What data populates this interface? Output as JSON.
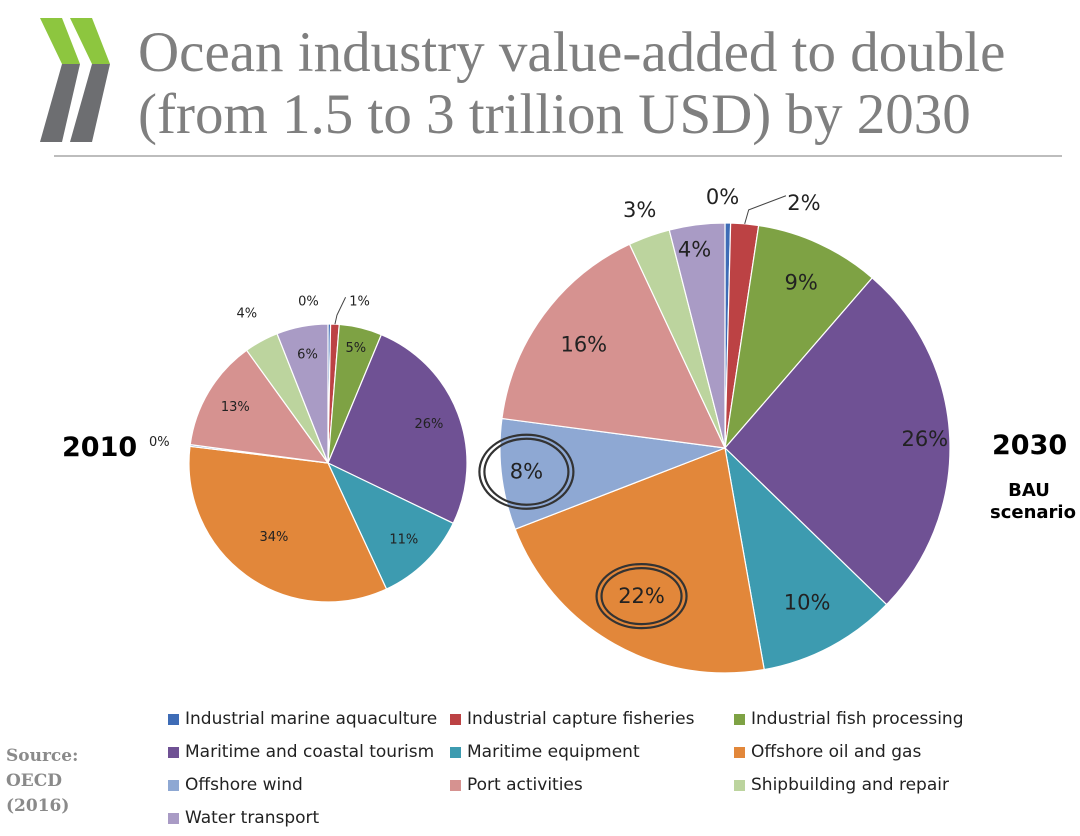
{
  "title": {
    "line1": "Ocean industry value-added to double",
    "line2": "(from 1.5 to 3 trillion USD) by 2030"
  },
  "source": {
    "line1": "Source:",
    "line2": "OECD",
    "line3": "(2016)"
  },
  "colors": {
    "chevron_light": "#8dc63f",
    "chevron_dark": "#6d6e71",
    "title_text": "#7f7f7f",
    "highlight_ring": "#333333"
  },
  "chart_data": [
    {
      "type": "pie",
      "year_label": "2010",
      "subtitle": "",
      "categories": [
        "Industrial marine aquaculture",
        "Industrial capture fisheries",
        "Industrial fish processing",
        "Maritime and coastal tourism",
        "Maritime equipment",
        "Offshore oil and gas",
        "Offshore wind",
        "Port activities",
        "Shipbuilding and repair",
        "Water transport"
      ],
      "values": [
        0.3,
        1,
        5,
        26,
        11,
        34,
        0.2,
        13,
        4,
        6
      ],
      "labels": [
        "0%",
        "1%",
        "5%",
        "26%",
        "11%",
        "34%",
        "0%",
        "13%",
        "4%",
        "6%"
      ],
      "colors": [
        "#3e6cb6",
        "#bc4244",
        "#7ea244",
        "#6f5194",
        "#3d9bb0",
        "#e2873a",
        "#8ea8d3",
        "#d69290",
        "#bcd49e",
        "#a99bc5"
      ]
    },
    {
      "type": "pie",
      "year_label": "2030",
      "subtitle": "BAU\nscenario",
      "categories": [
        "Industrial marine aquaculture",
        "Industrial capture fisheries",
        "Industrial fish processing",
        "Maritime and coastal tourism",
        "Maritime equipment",
        "Offshore oil and gas",
        "Offshore wind",
        "Port activities",
        "Shipbuilding and repair",
        "Water transport"
      ],
      "values": [
        0.4,
        2,
        9,
        26,
        10,
        22,
        8,
        16,
        3,
        4
      ],
      "labels": [
        "0%",
        "2%",
        "9%",
        "26%",
        "10%",
        "22%",
        "8%",
        "16%",
        "3%",
        "4%"
      ],
      "highlighted": [
        "Offshore oil and gas",
        "Offshore wind"
      ],
      "colors": [
        "#3e6cb6",
        "#bc4244",
        "#7ea244",
        "#6f5194",
        "#3d9bb0",
        "#e2873a",
        "#8ea8d3",
        "#d69290",
        "#bcd49e",
        "#a99bc5"
      ]
    }
  ],
  "legend": {
    "placement": "bottom",
    "items": [
      {
        "label": "Industrial marine aquaculture",
        "color": "#3e6cb6"
      },
      {
        "label": "Industrial capture fisheries",
        "color": "#bc4244"
      },
      {
        "label": "Industrial fish processing",
        "color": "#7ea244"
      },
      {
        "label": "Maritime and coastal tourism",
        "color": "#6f5194"
      },
      {
        "label": "Maritime equipment",
        "color": "#3d9bb0"
      },
      {
        "label": "Offshore oil and gas",
        "color": "#e2873a"
      },
      {
        "label": "Offshore wind",
        "color": "#8ea8d3"
      },
      {
        "label": "Port activities",
        "color": "#d69290"
      },
      {
        "label": "Shipbuilding and repair",
        "color": "#bcd49e"
      },
      {
        "label": "Water transport",
        "color": "#a99bc5"
      }
    ]
  }
}
